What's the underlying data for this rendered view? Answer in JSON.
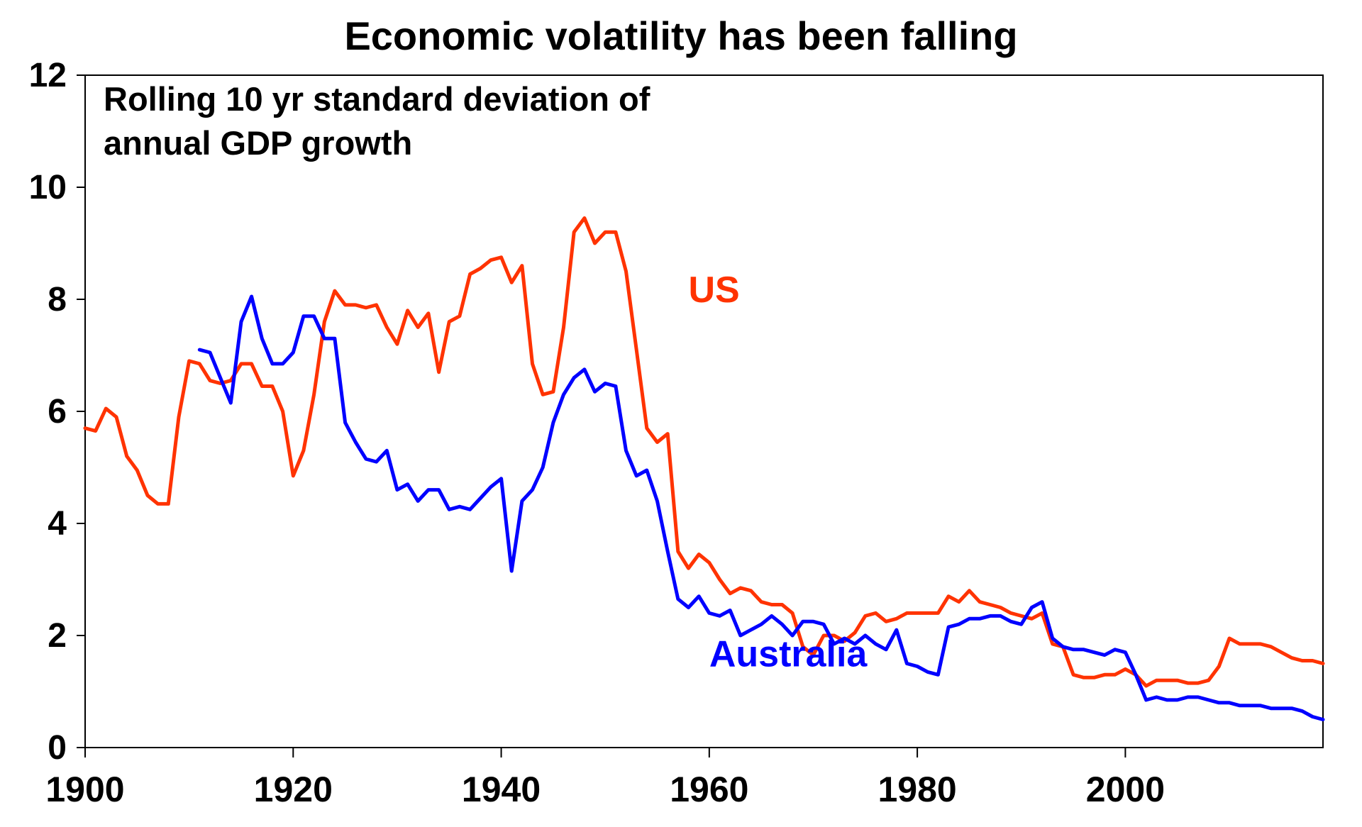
{
  "chart_data": {
    "type": "line",
    "title": "Economic volatility has been falling",
    "subtitle_lines": [
      "Rolling 10 yr standard deviation of",
      "annual GDP growth"
    ],
    "xlabel": "",
    "ylabel": "",
    "xlim": [
      1900,
      2019
    ],
    "ylim": [
      0,
      12
    ],
    "xticks": [
      1900,
      1920,
      1940,
      1960,
      1980,
      2000
    ],
    "yticks": [
      0,
      2,
      4,
      6,
      8,
      10,
      12
    ],
    "grid": false,
    "series": [
      {
        "name": "US",
        "color": "#ff3300",
        "points": [
          [
            1900,
            5.7
          ],
          [
            1901,
            5.65
          ],
          [
            1902,
            6.05
          ],
          [
            1903,
            5.9
          ],
          [
            1904,
            5.2
          ],
          [
            1905,
            4.95
          ],
          [
            1906,
            4.5
          ],
          [
            1907,
            4.35
          ],
          [
            1908,
            4.35
          ],
          [
            1909,
            5.9
          ],
          [
            1910,
            6.9
          ],
          [
            1911,
            6.85
          ],
          [
            1912,
            6.55
          ],
          [
            1913,
            6.5
          ],
          [
            1914,
            6.55
          ],
          [
            1915,
            6.85
          ],
          [
            1916,
            6.85
          ],
          [
            1917,
            6.45
          ],
          [
            1918,
            6.45
          ],
          [
            1919,
            6.0
          ],
          [
            1920,
            4.85
          ],
          [
            1921,
            5.3
          ],
          [
            1922,
            6.3
          ],
          [
            1923,
            7.6
          ],
          [
            1924,
            8.15
          ],
          [
            1925,
            7.9
          ],
          [
            1926,
            7.9
          ],
          [
            1927,
            7.85
          ],
          [
            1928,
            7.9
          ],
          [
            1929,
            7.5
          ],
          [
            1930,
            7.2
          ],
          [
            1931,
            7.8
          ],
          [
            1932,
            7.5
          ],
          [
            1933,
            7.75
          ],
          [
            1934,
            6.7
          ],
          [
            1935,
            7.6
          ],
          [
            1936,
            7.7
          ],
          [
            1937,
            8.45
          ],
          [
            1938,
            8.55
          ],
          [
            1939,
            8.7
          ],
          [
            1940,
            8.75
          ],
          [
            1941,
            8.3
          ],
          [
            1942,
            8.6
          ],
          [
            1943,
            6.85
          ],
          [
            1944,
            6.3
          ],
          [
            1945,
            6.35
          ],
          [
            1946,
            7.5
          ],
          [
            1947,
            9.2
          ],
          [
            1948,
            9.45
          ],
          [
            1949,
            9.0
          ],
          [
            1950,
            9.2
          ],
          [
            1951,
            9.2
          ],
          [
            1952,
            8.5
          ],
          [
            1953,
            7.1
          ],
          [
            1954,
            5.7
          ],
          [
            1955,
            5.45
          ],
          [
            1956,
            5.6
          ],
          [
            1957,
            3.5
          ],
          [
            1958,
            3.2
          ],
          [
            1959,
            3.45
          ],
          [
            1960,
            3.3
          ],
          [
            1961,
            3.0
          ],
          [
            1962,
            2.75
          ],
          [
            1963,
            2.85
          ],
          [
            1964,
            2.8
          ],
          [
            1965,
            2.6
          ],
          [
            1966,
            2.55
          ],
          [
            1967,
            2.55
          ],
          [
            1968,
            2.4
          ],
          [
            1969,
            1.8
          ],
          [
            1970,
            1.65
          ],
          [
            1971,
            2.0
          ],
          [
            1972,
            2.0
          ],
          [
            1973,
            1.9
          ],
          [
            1974,
            2.05
          ],
          [
            1975,
            2.35
          ],
          [
            1976,
            2.4
          ],
          [
            1977,
            2.25
          ],
          [
            1978,
            2.3
          ],
          [
            1979,
            2.4
          ],
          [
            1980,
            2.4
          ],
          [
            1981,
            2.4
          ],
          [
            1982,
            2.4
          ],
          [
            1983,
            2.7
          ],
          [
            1984,
            2.6
          ],
          [
            1985,
            2.8
          ],
          [
            1986,
            2.6
          ],
          [
            1987,
            2.55
          ],
          [
            1988,
            2.5
          ],
          [
            1989,
            2.4
          ],
          [
            1990,
            2.35
          ],
          [
            1991,
            2.3
          ],
          [
            1992,
            2.4
          ],
          [
            1993,
            1.85
          ],
          [
            1994,
            1.8
          ],
          [
            1995,
            1.3
          ],
          [
            1996,
            1.25
          ],
          [
            1997,
            1.25
          ],
          [
            1998,
            1.3
          ],
          [
            1999,
            1.3
          ],
          [
            2000,
            1.4
          ],
          [
            2001,
            1.3
          ],
          [
            2002,
            1.1
          ],
          [
            2003,
            1.2
          ],
          [
            2004,
            1.2
          ],
          [
            2005,
            1.2
          ],
          [
            2006,
            1.15
          ],
          [
            2007,
            1.15
          ],
          [
            2008,
            1.2
          ],
          [
            2009,
            1.45
          ],
          [
            2010,
            1.95
          ],
          [
            2011,
            1.85
          ],
          [
            2012,
            1.85
          ],
          [
            2013,
            1.85
          ],
          [
            2014,
            1.8
          ],
          [
            2015,
            1.7
          ],
          [
            2016,
            1.6
          ],
          [
            2017,
            1.55
          ],
          [
            2018,
            1.55
          ],
          [
            2019,
            1.5
          ]
        ]
      },
      {
        "name": "Australia",
        "color": "#0000ff",
        "points": [
          [
            1911,
            7.1
          ],
          [
            1912,
            7.05
          ],
          [
            1913,
            6.6
          ],
          [
            1914,
            6.15
          ],
          [
            1915,
            7.6
          ],
          [
            1916,
            8.05
          ],
          [
            1917,
            7.3
          ],
          [
            1918,
            6.85
          ],
          [
            1919,
            6.85
          ],
          [
            1920,
            7.05
          ],
          [
            1921,
            7.7
          ],
          [
            1922,
            7.7
          ],
          [
            1923,
            7.3
          ],
          [
            1924,
            7.3
          ],
          [
            1925,
            5.8
          ],
          [
            1926,
            5.45
          ],
          [
            1927,
            5.15
          ],
          [
            1928,
            5.1
          ],
          [
            1929,
            5.3
          ],
          [
            1930,
            4.6
          ],
          [
            1931,
            4.7
          ],
          [
            1932,
            4.4
          ],
          [
            1933,
            4.6
          ],
          [
            1934,
            4.6
          ],
          [
            1935,
            4.25
          ],
          [
            1936,
            4.3
          ],
          [
            1937,
            4.25
          ],
          [
            1938,
            4.45
          ],
          [
            1939,
            4.65
          ],
          [
            1940,
            4.8
          ],
          [
            1941,
            3.15
          ],
          [
            1942,
            4.4
          ],
          [
            1943,
            4.6
          ],
          [
            1944,
            5.0
          ],
          [
            1945,
            5.8
          ],
          [
            1946,
            6.3
          ],
          [
            1947,
            6.6
          ],
          [
            1948,
            6.75
          ],
          [
            1949,
            6.35
          ],
          [
            1950,
            6.5
          ],
          [
            1951,
            6.45
          ],
          [
            1952,
            5.3
          ],
          [
            1953,
            4.85
          ],
          [
            1954,
            4.95
          ],
          [
            1955,
            4.4
          ],
          [
            1956,
            3.5
          ],
          [
            1957,
            2.65
          ],
          [
            1958,
            2.5
          ],
          [
            1959,
            2.7
          ],
          [
            1960,
            2.4
          ],
          [
            1961,
            2.35
          ],
          [
            1962,
            2.45
          ],
          [
            1963,
            2.0
          ],
          [
            1964,
            2.1
          ],
          [
            1965,
            2.2
          ],
          [
            1966,
            2.35
          ],
          [
            1967,
            2.2
          ],
          [
            1968,
            2.0
          ],
          [
            1969,
            2.25
          ],
          [
            1970,
            2.25
          ],
          [
            1971,
            2.2
          ],
          [
            1972,
            1.85
          ],
          [
            1973,
            1.95
          ],
          [
            1974,
            1.85
          ],
          [
            1975,
            2.0
          ],
          [
            1976,
            1.85
          ],
          [
            1977,
            1.75
          ],
          [
            1978,
            2.1
          ],
          [
            1979,
            1.5
          ],
          [
            1980,
            1.45
          ],
          [
            1981,
            1.35
          ],
          [
            1982,
            1.3
          ],
          [
            1983,
            2.15
          ],
          [
            1984,
            2.2
          ],
          [
            1985,
            2.3
          ],
          [
            1986,
            2.3
          ],
          [
            1987,
            2.35
          ],
          [
            1988,
            2.35
          ],
          [
            1989,
            2.25
          ],
          [
            1990,
            2.2
          ],
          [
            1991,
            2.5
          ],
          [
            1992,
            2.6
          ],
          [
            1993,
            1.95
          ],
          [
            1994,
            1.8
          ],
          [
            1995,
            1.75
          ],
          [
            1996,
            1.75
          ],
          [
            1997,
            1.7
          ],
          [
            1998,
            1.65
          ],
          [
            1999,
            1.75
          ],
          [
            2000,
            1.7
          ],
          [
            2001,
            1.3
          ],
          [
            2002,
            0.85
          ],
          [
            2003,
            0.9
          ],
          [
            2004,
            0.85
          ],
          [
            2005,
            0.85
          ],
          [
            2006,
            0.9
          ],
          [
            2007,
            0.9
          ],
          [
            2008,
            0.85
          ],
          [
            2009,
            0.8
          ],
          [
            2010,
            0.8
          ],
          [
            2011,
            0.75
          ],
          [
            2012,
            0.75
          ],
          [
            2013,
            0.75
          ],
          [
            2014,
            0.7
          ],
          [
            2015,
            0.7
          ],
          [
            2016,
            0.7
          ],
          [
            2017,
            0.65
          ],
          [
            2018,
            0.55
          ],
          [
            2019,
            0.5
          ]
        ]
      }
    ],
    "series_labels": [
      {
        "text": "US",
        "color": "#ff3300",
        "x": 1958,
        "y": 7.95
      },
      {
        "text": "Australia",
        "color": "#0000ff",
        "x": 1960,
        "y": 1.45
      }
    ]
  }
}
